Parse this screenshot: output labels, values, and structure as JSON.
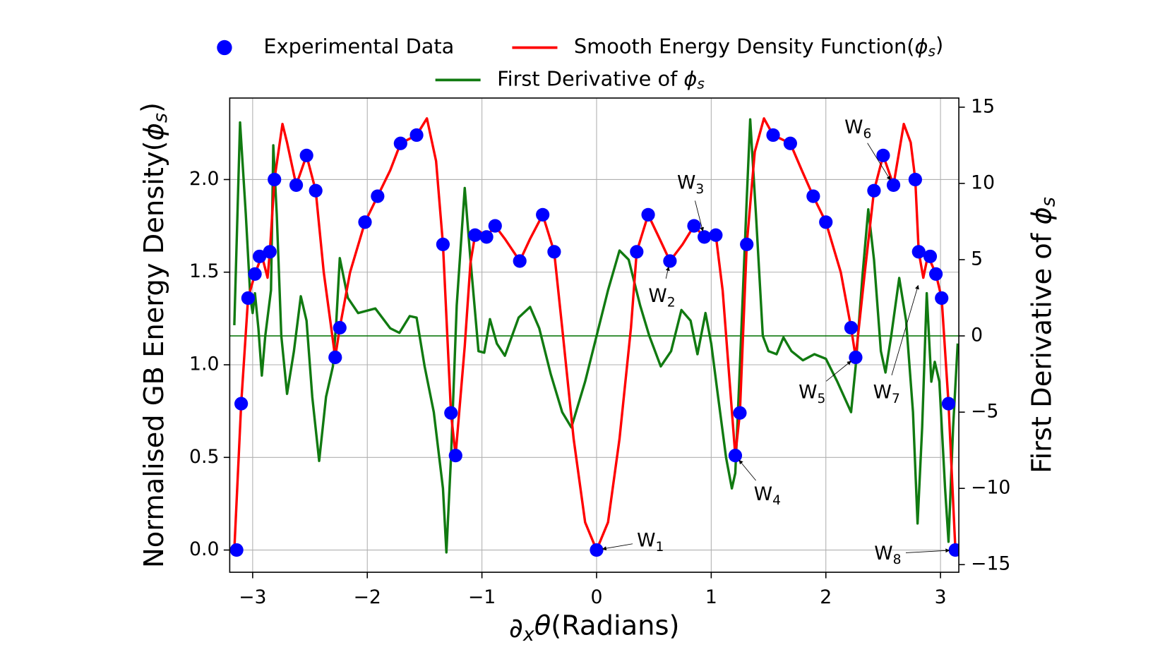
{
  "chart_data": {
    "type": "line",
    "xlabel": "∂xθ(Radians)",
    "ylabel": "Normalised GB Energy Density(ϕs)",
    "y2label": "First Derivative of ϕs",
    "ylabel_color": "#ff0000",
    "y2label_color": "#117a11",
    "legend": "upper center",
    "grid": true,
    "xlim": [
      -3.2,
      3.16
    ],
    "ylim": [
      -0.12,
      2.44
    ],
    "y2lim": [
      -15.5,
      15.6
    ],
    "xticks": [
      {
        "value": -3,
        "label": "−3"
      },
      {
        "value": -2,
        "label": "−2"
      },
      {
        "value": -1,
        "label": "−1"
      },
      0,
      1,
      2,
      3
    ],
    "yticks": [
      {
        "value": 0,
        "label": "0.0"
      },
      {
        "value": 0.5,
        "label": "0.5"
      },
      {
        "value": 1,
        "label": "1.0"
      },
      {
        "value": 1.5,
        "label": "1.5"
      },
      {
        "value": 2,
        "label": "2.0"
      }
    ],
    "y2ticks": [
      {
        "value": -15,
        "label": "−15"
      },
      {
        "value": -10,
        "label": "−10"
      },
      {
        "value": -5,
        "label": "−5"
      },
      0,
      5,
      10,
      15
    ],
    "hline": {
      "axis": "y2",
      "value": 0,
      "color": "#117a11"
    },
    "series": [
      {
        "name": "Experimental Data",
        "type": "scatter",
        "color": "#0000ff",
        "x": [
          -3.14,
          -3.1,
          -3.04,
          -2.98,
          -2.94,
          -2.85,
          -2.81,
          -2.62,
          -2.53,
          -2.45,
          -2.28,
          -2.24,
          -2.02,
          -1.91,
          -1.71,
          -1.57,
          -1.34,
          -1.27,
          -1.23,
          -1.06,
          -0.96,
          -0.885,
          -0.67,
          -0.47,
          -0.37,
          0,
          0.35,
          0.45,
          0.64,
          0.85,
          0.94,
          1.04,
          1.21,
          1.25,
          1.31,
          1.54,
          1.69,
          1.89,
          2.0,
          2.22,
          2.26,
          2.42,
          2.5,
          2.59,
          2.78,
          2.81,
          2.91,
          2.96,
          3.01,
          3.07,
          3.13
        ],
        "values": [
          0,
          0.79,
          1.36,
          1.49,
          1.585,
          1.61,
          2.0,
          1.97,
          2.13,
          1.94,
          1.04,
          1.2,
          1.77,
          1.91,
          2.195,
          2.24,
          1.65,
          0.74,
          0.51,
          1.7,
          1.69,
          1.75,
          1.56,
          1.81,
          1.61,
          0,
          1.61,
          1.81,
          1.56,
          1.75,
          1.69,
          1.7,
          0.51,
          0.74,
          1.65,
          2.24,
          2.195,
          1.91,
          1.77,
          1.2,
          1.04,
          1.94,
          2.13,
          1.97,
          2.0,
          1.61,
          1.585,
          1.49,
          1.36,
          0.79,
          0
        ]
      },
      {
        "name": "Smooth Energy Density Function(ϕs)",
        "type": "line",
        "color": "#ff0000",
        "x": [
          -3.16,
          -3.1,
          -3.04,
          -2.98,
          -2.92,
          -2.87,
          -2.85,
          -2.81,
          -2.74,
          -2.7,
          -2.62,
          -2.53,
          -2.45,
          -2.38,
          -2.28,
          -2.24,
          -2.15,
          -2.02,
          -1.91,
          -1.8,
          -1.71,
          -1.57,
          -1.48,
          -1.4,
          -1.34,
          -1.27,
          -1.23,
          -1.15,
          -1.1,
          -1.06,
          -1.02,
          -0.96,
          -0.885,
          -0.8,
          -0.67,
          -0.58,
          -0.47,
          -0.37,
          -0.3,
          -0.2,
          -0.1,
          0,
          0.1,
          0.2,
          0.3,
          0.35,
          0.45,
          0.55,
          0.64,
          0.75,
          0.85,
          0.94,
          1.04,
          1.1,
          1.21,
          1.25,
          1.31,
          1.38,
          1.46,
          1.54,
          1.69,
          1.79,
          1.89,
          2.0,
          2.13,
          2.22,
          2.26,
          2.34,
          2.42,
          2.5,
          2.59,
          2.68,
          2.74,
          2.78,
          2.81,
          2.85,
          2.89,
          2.96,
          3.01,
          3.07,
          3.13
        ],
        "values": [
          0,
          0.79,
          1.36,
          1.49,
          1.59,
          1.47,
          1.61,
          2.0,
          2.3,
          2.2,
          1.97,
          2.13,
          1.94,
          1.5,
          1.04,
          1.2,
          1.5,
          1.77,
          1.91,
          2.05,
          2.195,
          2.24,
          2.33,
          2.1,
          1.65,
          0.74,
          0.51,
          1.1,
          1.55,
          1.7,
          1.72,
          1.69,
          1.75,
          1.68,
          1.56,
          1.68,
          1.81,
          1.61,
          1.2,
          0.6,
          0.15,
          0,
          0.15,
          0.6,
          1.2,
          1.61,
          1.81,
          1.68,
          1.56,
          1.65,
          1.75,
          1.69,
          1.7,
          1.4,
          0.51,
          0.74,
          1.65,
          2.15,
          2.33,
          2.24,
          2.195,
          2.05,
          1.91,
          1.77,
          1.5,
          1.2,
          1.04,
          1.5,
          1.94,
          2.13,
          1.97,
          2.3,
          2.2,
          2.0,
          1.61,
          1.47,
          1.59,
          1.49,
          1.36,
          0.79,
          0
        ]
      },
      {
        "name": "First Derivative of ϕs",
        "type": "line",
        "color": "#117a11",
        "axis": "y2",
        "x": [
          -3.16,
          -3.11,
          -3.06,
          -3.02,
          -3.0,
          -2.98,
          -2.95,
          -2.92,
          -2.89,
          -2.84,
          -2.82,
          -2.79,
          -2.75,
          -2.7,
          -2.64,
          -2.58,
          -2.53,
          -2.48,
          -2.42,
          -2.36,
          -2.3,
          -2.27,
          -2.24,
          -2.17,
          -2.08,
          -1.93,
          -1.8,
          -1.72,
          -1.63,
          -1.57,
          -1.5,
          -1.42,
          -1.34,
          -1.31,
          -1.27,
          -1.22,
          -1.15,
          -1.1,
          -1.03,
          -0.98,
          -0.93,
          -0.87,
          -0.8,
          -0.68,
          -0.58,
          -0.5,
          -0.4,
          -0.3,
          -0.22,
          -0.1,
          0,
          0.1,
          0.2,
          0.28,
          0.38,
          0.46,
          0.56,
          0.65,
          0.74,
          0.82,
          0.88,
          0.95,
          1.0,
          1.06,
          1.13,
          1.18,
          1.21,
          1.25,
          1.31,
          1.34,
          1.39,
          1.45,
          1.5,
          1.57,
          1.63,
          1.7,
          1.8,
          1.9,
          2.0,
          2.1,
          2.16,
          2.22,
          2.26,
          2.32,
          2.37,
          2.42,
          2.48,
          2.52,
          2.57,
          2.64,
          2.7,
          2.76,
          2.8,
          2.84,
          2.88,
          2.92,
          2.95,
          2.99,
          3.04,
          3.07,
          3.11,
          3.15
        ],
        "values": [
          0.7,
          14,
          8,
          2.5,
          1.5,
          2.8,
          0.5,
          -2.6,
          0,
          3,
          12.5,
          8,
          0,
          -3.8,
          -1,
          2.6,
          1,
          -4,
          -8.2,
          -4,
          -2,
          1,
          5.1,
          2.5,
          1.5,
          1.8,
          0.5,
          0.2,
          1.3,
          1.2,
          -2,
          -5,
          -10,
          -14.2,
          -8,
          2,
          9.7,
          5,
          -1,
          -1.1,
          1.1,
          -0.5,
          -1.3,
          1.2,
          1.9,
          0.5,
          -2.5,
          -5,
          -6,
          -3,
          0,
          3,
          5.6,
          5,
          2,
          0,
          -2,
          -1,
          1.7,
          1,
          -1.2,
          1.5,
          -0.5,
          -4,
          -8,
          -10,
          -9,
          -2,
          9,
          14.2,
          8,
          0,
          -1,
          -1.2,
          -0.1,
          -1,
          -1.6,
          -1.2,
          -1.5,
          -3,
          -4,
          -5,
          -2,
          4,
          8.3,
          5,
          -1,
          -2.4,
          0,
          3.8,
          1,
          -5,
          -12.3,
          -6,
          2.8,
          -3,
          -1.7,
          -3,
          -10,
          -13.5,
          -6,
          -0.5
        ]
      }
    ],
    "annotations": [
      {
        "text": "W",
        "subscript": "1",
        "xy": [
          0,
          0
        ],
        "xytext": [
          0.47,
          0.05
        ]
      },
      {
        "text": "W",
        "subscript": "2",
        "xy": [
          0.64,
          1.56
        ],
        "xytext": [
          0.57,
          1.37
        ]
      },
      {
        "text": "W",
        "subscript": "3",
        "xy": [
          0.94,
          1.69
        ],
        "xytext": [
          0.82,
          1.98
        ]
      },
      {
        "text": "W",
        "subscript": "4",
        "xy": [
          1.21,
          0.51
        ],
        "xytext": [
          1.49,
          0.3
        ]
      },
      {
        "text": "W",
        "subscript": "5",
        "xy": [
          2.26,
          1.04
        ],
        "xytext": [
          1.88,
          0.85
        ]
      },
      {
        "text": "W",
        "subscript": "6",
        "xy": [
          2.59,
          1.97
        ],
        "xytext": [
          2.28,
          2.28
        ]
      },
      {
        "text": "W",
        "subscript": "7",
        "xy": [
          2.82,
          1.46
        ],
        "xytext": [
          2.53,
          0.85
        ]
      },
      {
        "text": "W",
        "subscript": "8",
        "xy": [
          3.13,
          0
        ],
        "xytext": [
          2.54,
          -0.02
        ]
      }
    ]
  }
}
